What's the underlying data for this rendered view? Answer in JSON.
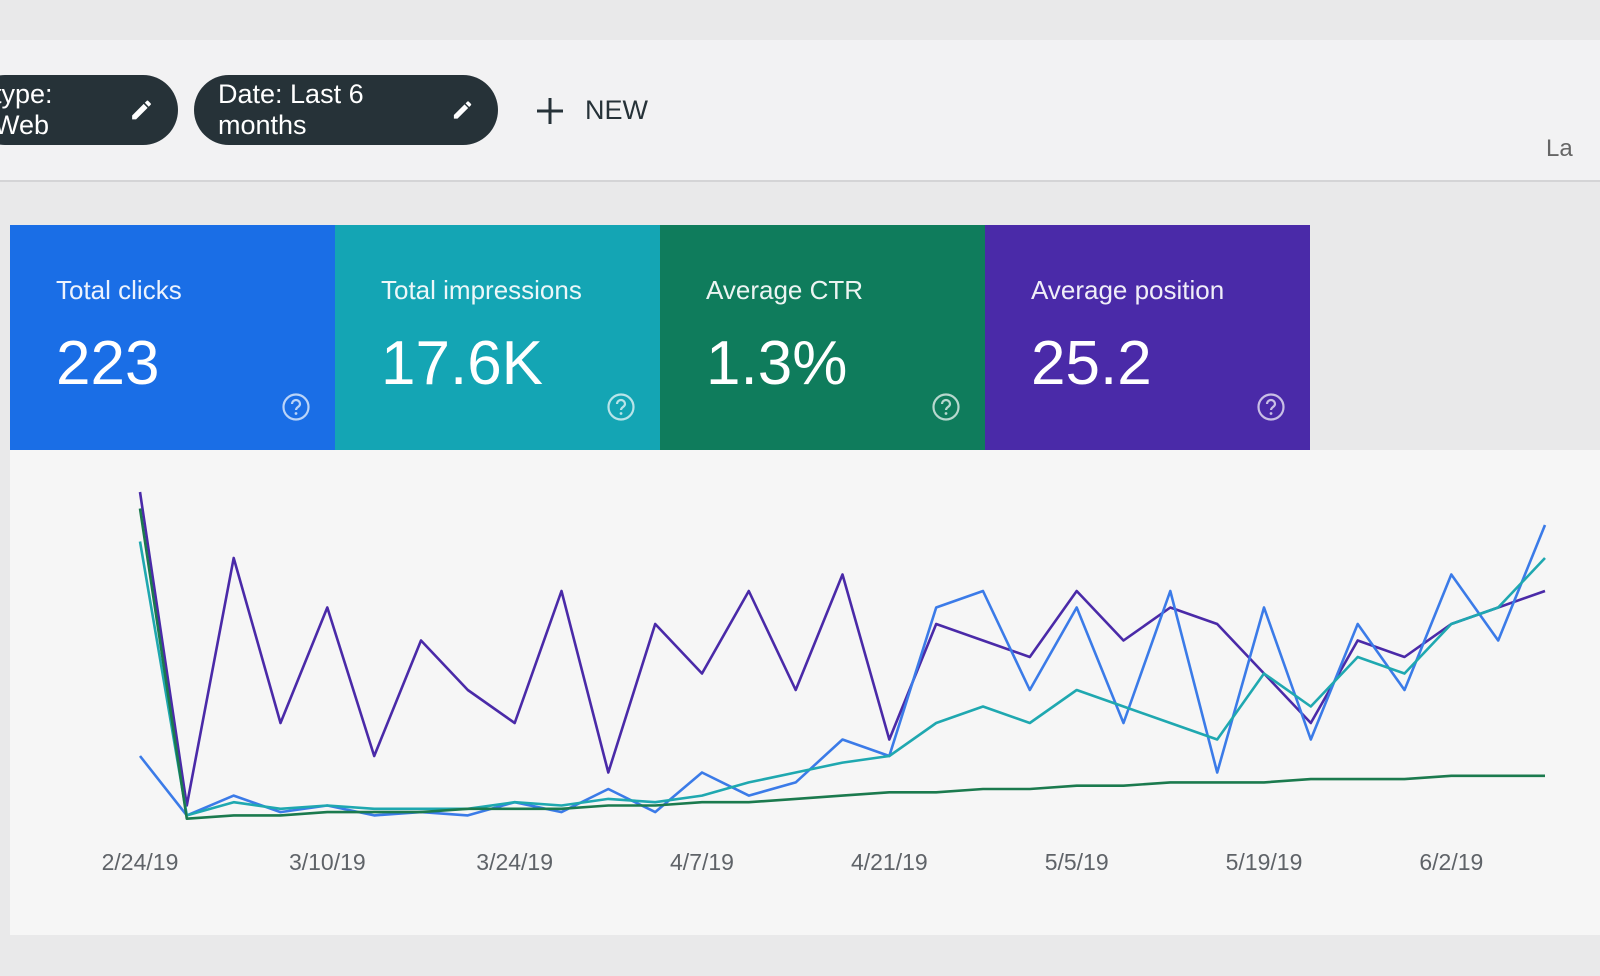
{
  "toolbar": {
    "filters": [
      "type: Web",
      "Date: Last 6 months"
    ],
    "new_button": "NEW",
    "partial_text": "La"
  },
  "cards": [
    {
      "label": "Total clicks",
      "value": "223",
      "color": "#1a6ee6"
    },
    {
      "label": "Total impressions",
      "value": "17.6K",
      "color": "#14a5b4"
    },
    {
      "label": "Average CTR",
      "value": "1.3%",
      "color": "#0f7c5c"
    },
    {
      "label": "Average position",
      "value": "25.2",
      "color": "#4a2aa8"
    }
  ],
  "chart_data": {
    "type": "line",
    "categories": [
      "2/24/19",
      null,
      null,
      null,
      "3/10/19",
      null,
      null,
      null,
      "3/24/19",
      null,
      null,
      null,
      "4/7/19",
      null,
      null,
      null,
      "4/21/19",
      null,
      null,
      null,
      "5/5/19",
      null,
      null,
      null,
      "5/19/19",
      null,
      null,
      null,
      "6/2/19",
      null,
      null
    ],
    "series": [
      {
        "color": "#4a2aa8",
        "values": [
          100,
          5,
          80,
          30,
          65,
          20,
          55,
          40,
          30,
          70,
          15,
          60,
          45,
          70,
          40,
          75,
          25,
          60,
          55,
          50,
          70,
          55,
          65,
          60,
          45,
          30,
          55,
          50,
          60,
          65,
          70
        ]
      },
      {
        "color": "#3b7be8",
        "values": [
          20,
          2,
          8,
          3,
          5,
          2,
          3,
          2,
          6,
          3,
          10,
          3,
          15,
          8,
          12,
          25,
          20,
          65,
          70,
          40,
          65,
          30,
          70,
          15,
          65,
          25,
          60,
          40,
          75,
          55,
          90
        ]
      },
      {
        "color": "#1fa8b0",
        "values": [
          85,
          2,
          6,
          4,
          5,
          4,
          4,
          4,
          6,
          5,
          7,
          6,
          8,
          12,
          15,
          18,
          20,
          30,
          35,
          30,
          40,
          35,
          30,
          25,
          45,
          35,
          50,
          45,
          60,
          65,
          80
        ]
      },
      {
        "color": "#1b7a4e",
        "values": [
          95,
          1,
          2,
          2,
          3,
          3,
          3,
          4,
          4,
          4,
          5,
          5,
          6,
          6,
          7,
          8,
          9,
          9,
          10,
          10,
          11,
          11,
          12,
          12,
          12,
          13,
          13,
          13,
          14,
          14,
          14
        ]
      }
    ]
  }
}
